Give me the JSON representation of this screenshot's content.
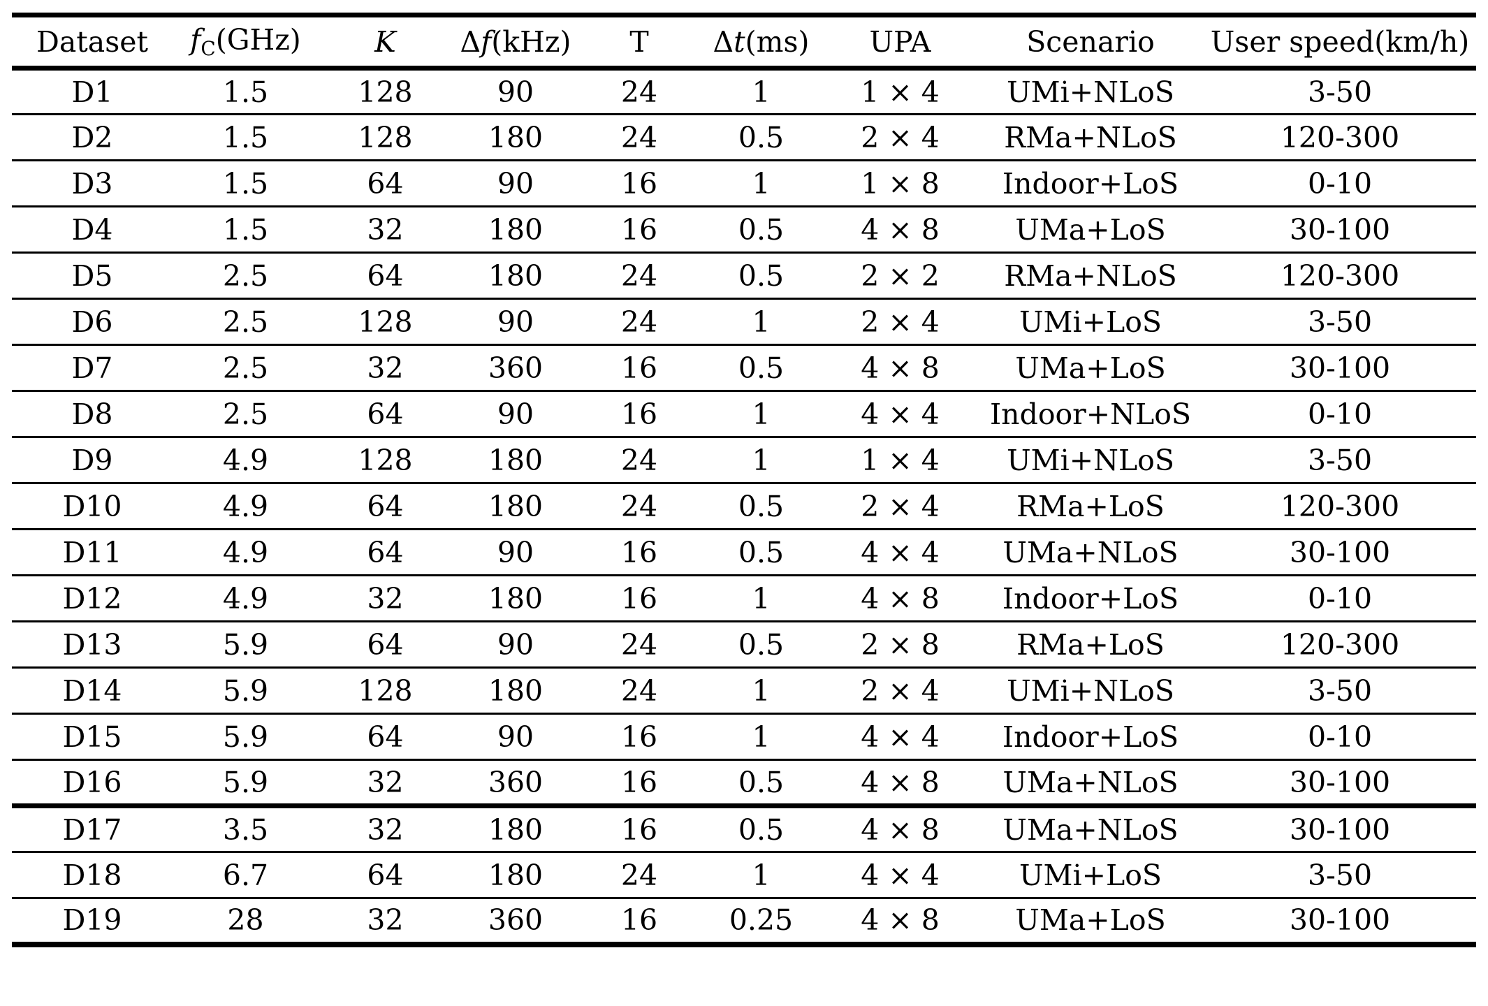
{
  "header": {
    "dataset": "Dataset",
    "fc": {
      "f": "f",
      "sub": "C",
      "unit": "(GHz)"
    },
    "k": "K",
    "df": {
      "delta": "Δ",
      "f": "f",
      "unit": "(kHz)"
    },
    "t": "T",
    "dt": {
      "delta": "Δ",
      "t": "t",
      "unit": "(ms)"
    },
    "upa": "UPA",
    "scenario": "Scenario",
    "user_speed": "User speed(km/h)"
  },
  "rows": [
    {
      "group": 1,
      "dataset": "D1",
      "fc": "1.5",
      "k": "128",
      "df": "90",
      "t": "24",
      "dt": "1",
      "upa": "1 × 4",
      "scenario": "UMi+NLoS",
      "speed": "3-50"
    },
    {
      "group": 1,
      "dataset": "D2",
      "fc": "1.5",
      "k": "128",
      "df": "180",
      "t": "24",
      "dt": "0.5",
      "upa": "2 × 4",
      "scenario": "RMa+NLoS",
      "speed": "120-300"
    },
    {
      "group": 1,
      "dataset": "D3",
      "fc": "1.5",
      "k": "64",
      "df": "90",
      "t": "16",
      "dt": "1",
      "upa": "1 × 8",
      "scenario": "Indoor+LoS",
      "speed": "0-10"
    },
    {
      "group": 1,
      "dataset": "D4",
      "fc": "1.5",
      "k": "32",
      "df": "180",
      "t": "16",
      "dt": "0.5",
      "upa": "4 × 8",
      "scenario": "UMa+LoS",
      "speed": "30-100"
    },
    {
      "group": 1,
      "dataset": "D5",
      "fc": "2.5",
      "k": "64",
      "df": "180",
      "t": "24",
      "dt": "0.5",
      "upa": "2 × 2",
      "scenario": "RMa+NLoS",
      "speed": "120-300"
    },
    {
      "group": 1,
      "dataset": "D6",
      "fc": "2.5",
      "k": "128",
      "df": "90",
      "t": "24",
      "dt": "1",
      "upa": "2 × 4",
      "scenario": "UMi+LoS",
      "speed": "3-50"
    },
    {
      "group": 1,
      "dataset": "D7",
      "fc": "2.5",
      "k": "32",
      "df": "360",
      "t": "16",
      "dt": "0.5",
      "upa": "4 × 8",
      "scenario": "UMa+LoS",
      "speed": "30-100"
    },
    {
      "group": 1,
      "dataset": "D8",
      "fc": "2.5",
      "k": "64",
      "df": "90",
      "t": "16",
      "dt": "1",
      "upa": "4 × 4",
      "scenario": "Indoor+NLoS",
      "speed": "0-10"
    },
    {
      "group": 1,
      "dataset": "D9",
      "fc": "4.9",
      "k": "128",
      "df": "180",
      "t": "24",
      "dt": "1",
      "upa": "1 × 4",
      "scenario": "UMi+NLoS",
      "speed": "3-50"
    },
    {
      "group": 1,
      "dataset": "D10",
      "fc": "4.9",
      "k": "64",
      "df": "180",
      "t": "24",
      "dt": "0.5",
      "upa": "2 × 4",
      "scenario": "RMa+LoS",
      "speed": "120-300"
    },
    {
      "group": 1,
      "dataset": "D11",
      "fc": "4.9",
      "k": "64",
      "df": "90",
      "t": "16",
      "dt": "0.5",
      "upa": "4 × 4",
      "scenario": "UMa+NLoS",
      "speed": "30-100"
    },
    {
      "group": 1,
      "dataset": "D12",
      "fc": "4.9",
      "k": "32",
      "df": "180",
      "t": "16",
      "dt": "1",
      "upa": "4 × 8",
      "scenario": "Indoor+LoS",
      "speed": "0-10"
    },
    {
      "group": 1,
      "dataset": "D13",
      "fc": "5.9",
      "k": "64",
      "df": "90",
      "t": "24",
      "dt": "0.5",
      "upa": "2 × 8",
      "scenario": "RMa+LoS",
      "speed": "120-300"
    },
    {
      "group": 1,
      "dataset": "D14",
      "fc": "5.9",
      "k": "128",
      "df": "180",
      "t": "24",
      "dt": "1",
      "upa": "2 × 4",
      "scenario": "UMi+NLoS",
      "speed": "3-50"
    },
    {
      "group": 1,
      "dataset": "D15",
      "fc": "5.9",
      "k": "64",
      "df": "90",
      "t": "16",
      "dt": "1",
      "upa": "4 × 4",
      "scenario": "Indoor+LoS",
      "speed": "0-10"
    },
    {
      "group": 1,
      "dataset": "D16",
      "fc": "5.9",
      "k": "32",
      "df": "360",
      "t": "16",
      "dt": "0.5",
      "upa": "4 × 8",
      "scenario": "UMa+NLoS",
      "speed": "30-100"
    },
    {
      "group": 2,
      "dataset": "D17",
      "fc": "3.5",
      "k": "32",
      "df": "180",
      "t": "16",
      "dt": "0.5",
      "upa": "4 × 8",
      "scenario": "UMa+NLoS",
      "speed": "30-100"
    },
    {
      "group": 2,
      "dataset": "D18",
      "fc": "6.7",
      "k": "64",
      "df": "180",
      "t": "24",
      "dt": "1",
      "upa": "4 × 4",
      "scenario": "UMi+LoS",
      "speed": "3-50"
    },
    {
      "group": 2,
      "dataset": "D19",
      "fc": "28",
      "k": "32",
      "df": "360",
      "t": "16",
      "dt": "0.25",
      "upa": "4 × 8",
      "scenario": "UMa+LoS",
      "speed": "30-100"
    }
  ],
  "column_keys": [
    "dataset",
    "fc",
    "k",
    "df",
    "t",
    "dt",
    "upa",
    "scenario",
    "speed"
  ]
}
